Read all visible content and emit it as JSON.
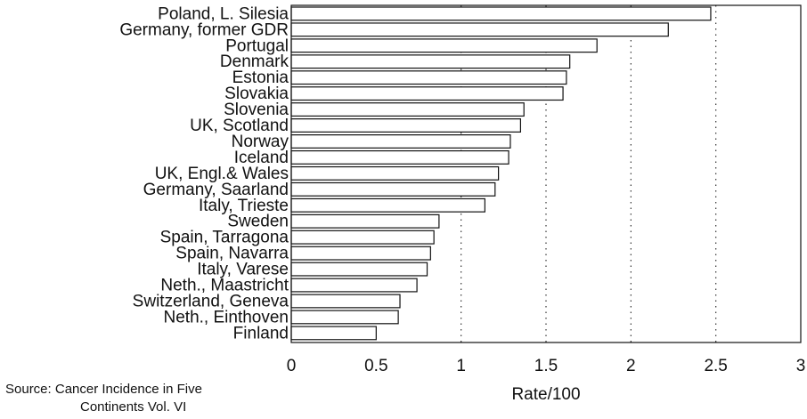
{
  "chart_data": {
    "type": "bar",
    "orientation": "horizontal",
    "categories": [
      "Poland, L. Silesia",
      "Germany, former GDR",
      "Portugal",
      "Denmark",
      "Estonia",
      "Slovakia",
      "Slovenia",
      "UK, Scotland",
      "Norway",
      "Iceland",
      "UK, Engl.& Wales",
      "Germany, Saarland",
      "Italy, Trieste",
      "Sweden",
      "Spain, Tarragona",
      "Spain, Navarra",
      "Italy, Varese",
      "Neth., Maastricht",
      "Switzerland, Geneva",
      "Neth., Einthoven",
      "Finland"
    ],
    "values": [
      2.47,
      2.22,
      1.8,
      1.64,
      1.62,
      1.6,
      1.37,
      1.35,
      1.29,
      1.28,
      1.22,
      1.2,
      1.14,
      0.87,
      0.84,
      0.82,
      0.8,
      0.74,
      0.64,
      0.63,
      0.5
    ],
    "xlabel": "Rate/100",
    "xlim": [
      0,
      3
    ],
    "xticks": [
      "0",
      "0.5",
      "1",
      "1.5",
      "2",
      "2.5",
      "3"
    ],
    "gridlines": [
      1,
      1.5,
      2,
      2.5
    ],
    "grid": "vertical dotted"
  },
  "source": {
    "line1": "Source: Cancer Incidence in Five",
    "line2": "Continents Vol. VI"
  }
}
